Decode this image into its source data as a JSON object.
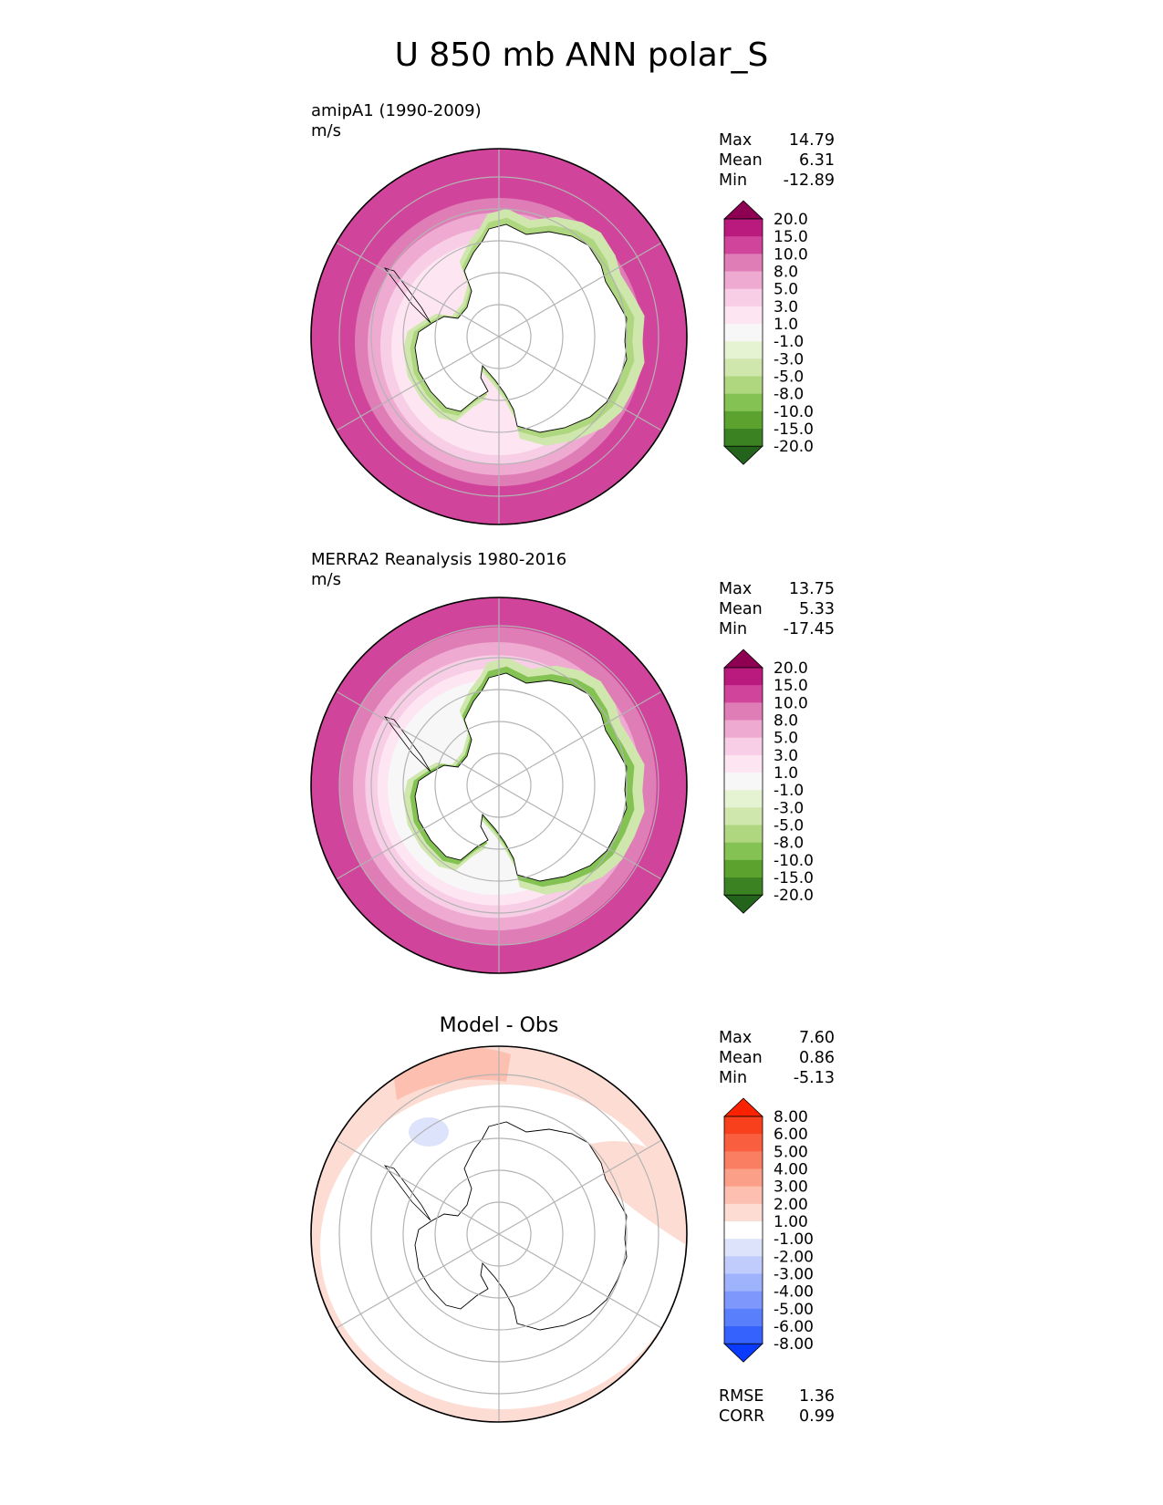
{
  "title": "U 850 mb ANN polar_S",
  "colors": {
    "pink_green_cmap": [
      "#23631b",
      "#3b8322",
      "#5ba32e",
      "#83c253",
      "#aed77f",
      "#cfe7ad",
      "#e6f3d3",
      "#f7f7f7",
      "#fde5f1",
      "#f8cde6",
      "#efaad2",
      "#df7db7",
      "#d1449b",
      "#ba1a7e",
      "#8e0152"
    ],
    "diff_cmap": [
      "#0a3afe",
      "#3561fd",
      "#5a7ffd",
      "#7d97fc",
      "#9fb2fc",
      "#c0ccfb",
      "#dde3fb",
      "#ffffff",
      "#fddcd3",
      "#fcbfb0",
      "#fb9f89",
      "#fa7e62",
      "#f95f3e",
      "#f8401c",
      "#fb2200"
    ],
    "coastline": "#000000",
    "gridline": "#b3b3b3"
  },
  "panels": [
    {
      "title_lines": [
        "amipA1 (1990-2009)",
        "m/s"
      ],
      "stats": [
        {
          "label": "Max",
          "value": "14.79"
        },
        {
          "label": "Mean",
          "value": "6.31"
        },
        {
          "label": "Min",
          "value": "-12.89"
        }
      ],
      "colorbar_labels": [
        "20.0",
        "15.0",
        "10.0",
        "8.0",
        "5.0",
        "3.0",
        "1.0",
        "-1.0",
        "-3.0",
        "-5.0",
        "-8.0",
        "-10.0",
        "-15.0",
        "-20.0"
      ]
    },
    {
      "title_lines": [
        "MERRA2 Reanalysis 1980-2016",
        "m/s"
      ],
      "stats": [
        {
          "label": "Max",
          "value": "13.75"
        },
        {
          "label": "Mean",
          "value": "5.33"
        },
        {
          "label": "Min",
          "value": "-17.45"
        }
      ],
      "colorbar_labels": [
        "20.0",
        "15.0",
        "10.0",
        "8.0",
        "5.0",
        "3.0",
        "1.0",
        "-1.0",
        "-3.0",
        "-5.0",
        "-8.0",
        "-10.0",
        "-15.0",
        "-20.0"
      ]
    },
    {
      "title_lines": [
        "Model - Obs"
      ],
      "stats": [
        {
          "label": "Max",
          "value": "7.60"
        },
        {
          "label": "Mean",
          "value": "0.86"
        },
        {
          "label": "Min",
          "value": "-5.13"
        }
      ],
      "colorbar_labels": [
        "8.00",
        "6.00",
        "5.00",
        "4.00",
        "3.00",
        "2.00",
        "1.00",
        "-1.00",
        "-2.00",
        "-3.00",
        "-4.00",
        "-5.00",
        "-6.00",
        "-8.00"
      ],
      "metrics": [
        {
          "label": "RMSE",
          "value": "1.36"
        },
        {
          "label": "CORR",
          "value": "0.99"
        }
      ]
    }
  ],
  "chart_data": [
    {
      "type": "heatmap",
      "title": "amipA1 (1990-2009)",
      "units": "m/s",
      "projection": "South polar stereographic",
      "contour_levels": [
        -20,
        -15,
        -10,
        -8,
        -5,
        -3,
        -1,
        1,
        3,
        5,
        8,
        10,
        15,
        20
      ],
      "colorbar_extend": "both",
      "ring_levels": [
        14,
        12,
        10,
        8,
        5,
        3,
        1
      ],
      "statistics": {
        "max": 14.79,
        "mean": 6.31,
        "min": -12.89
      }
    },
    {
      "type": "heatmap",
      "title": "MERRA2 Reanalysis 1980-2016",
      "units": "m/s",
      "projection": "South polar stereographic",
      "contour_levels": [
        -20,
        -15,
        -10,
        -8,
        -5,
        -3,
        -1,
        1,
        3,
        5,
        8,
        10,
        15,
        20
      ],
      "colorbar_extend": "both",
      "ring_levels": [
        13,
        11,
        9,
        7,
        4,
        2,
        0
      ],
      "statistics": {
        "max": 13.75,
        "mean": 5.33,
        "min": -17.45
      }
    },
    {
      "type": "heatmap",
      "title": "Model - Obs",
      "projection": "South polar stereographic",
      "contour_levels": [
        -8,
        -6,
        -5,
        -4,
        -3,
        -2,
        -1,
        1,
        2,
        3,
        4,
        5,
        6,
        8
      ],
      "colorbar_extend": "both",
      "statistics": {
        "max": 7.6,
        "mean": 0.86,
        "min": -5.13,
        "rmse": 1.36,
        "corr": 0.99
      }
    }
  ]
}
